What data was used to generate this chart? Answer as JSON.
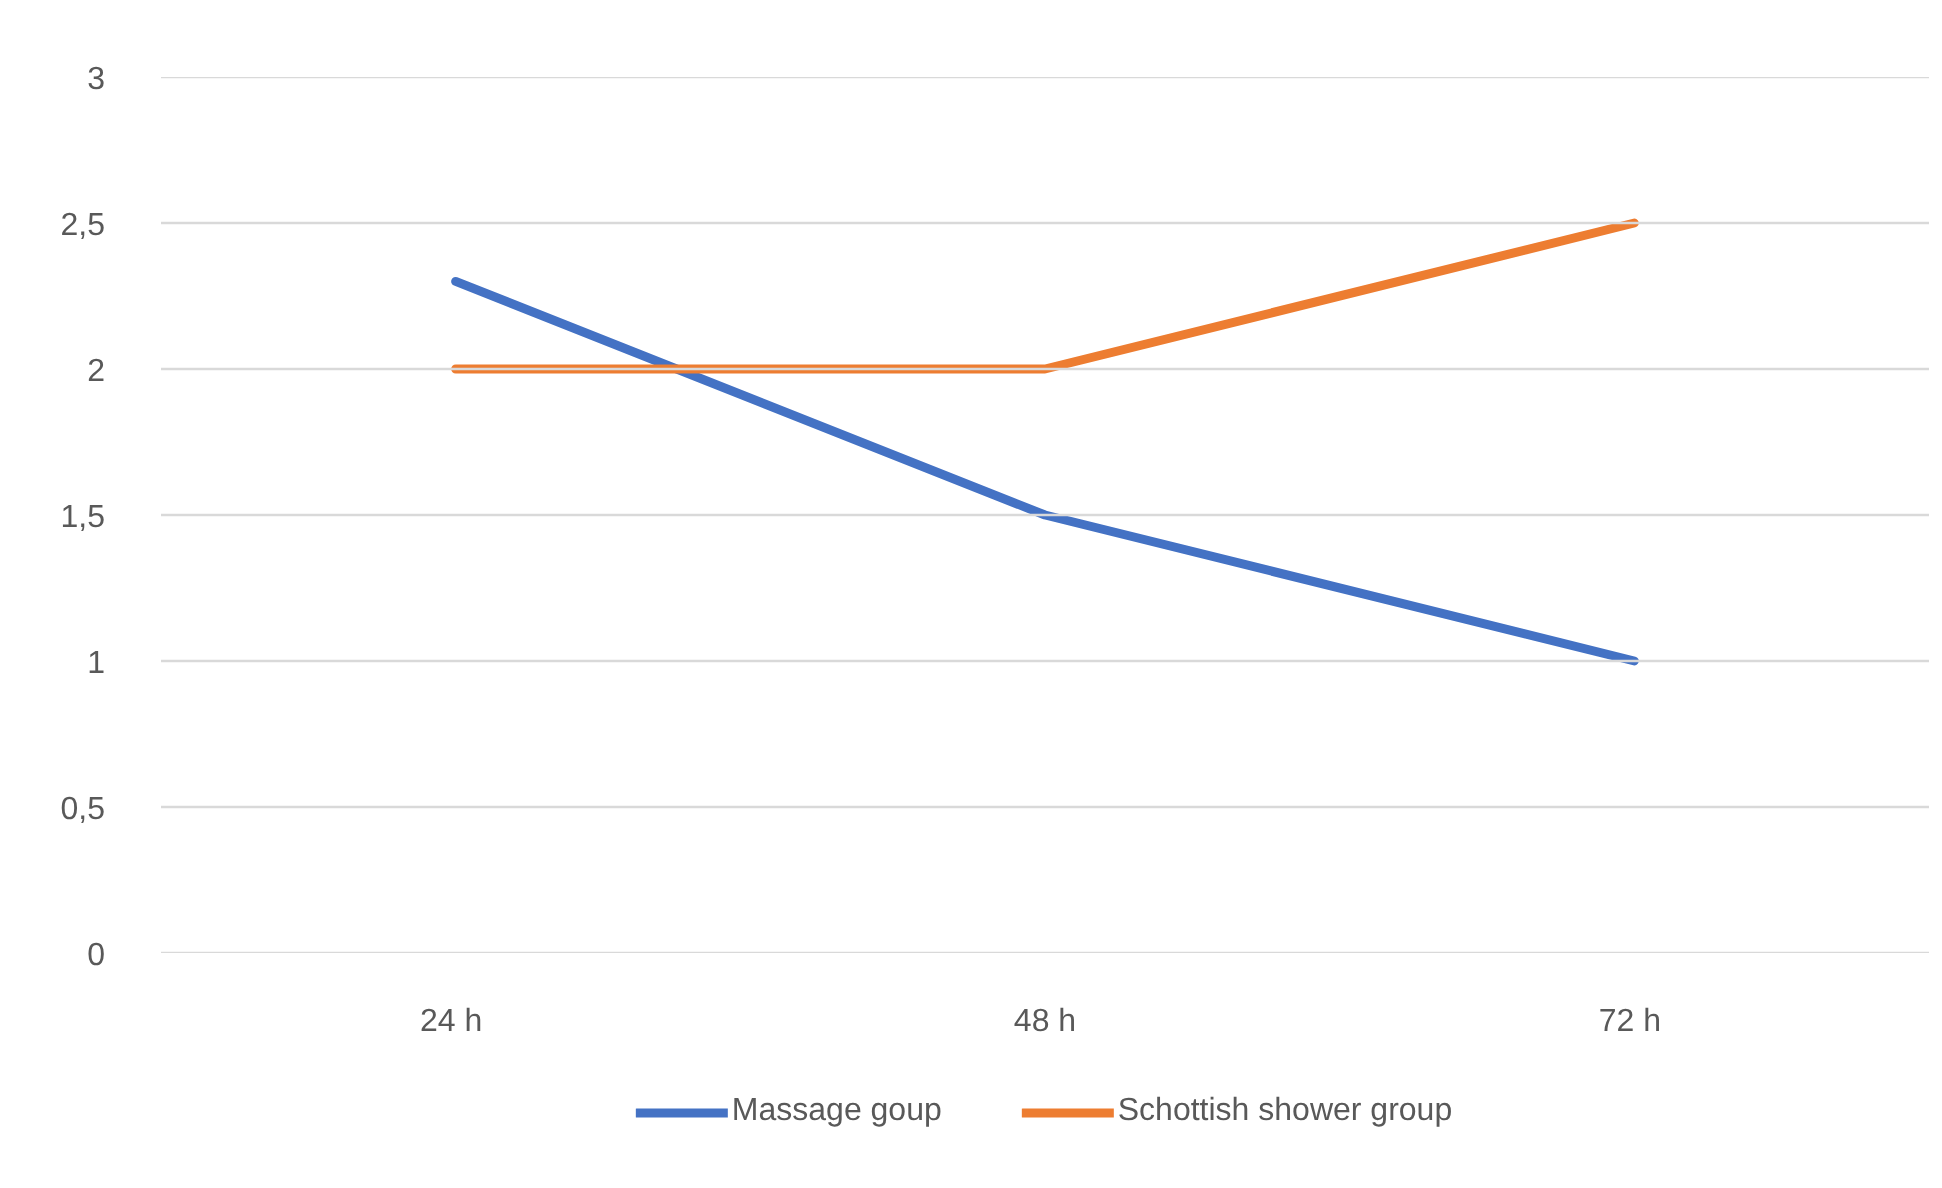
{
  "chart_data": {
    "type": "line",
    "categories": [
      "24  h",
      "48 h",
      "72  h"
    ],
    "series": [
      {
        "name": "Massage goup",
        "color": "#4472c4",
        "values": [
          2.3,
          1.5,
          1.0
        ]
      },
      {
        "name": "Schottish shower group",
        "color": "#ed7d31",
        "values": [
          2.0,
          2.0,
          2.5
        ]
      }
    ],
    "ylim": [
      0,
      3
    ],
    "yticks": [
      0,
      {
        "value": 0.5,
        "label": "0,5"
      },
      1,
      {
        "value": 1.5,
        "label": "1,5"
      },
      2,
      {
        "value": 2.5,
        "label": "2,5"
      },
      3
    ],
    "grid": "y",
    "legend": "bottom",
    "marker": "none",
    "line_style": "solid"
  }
}
